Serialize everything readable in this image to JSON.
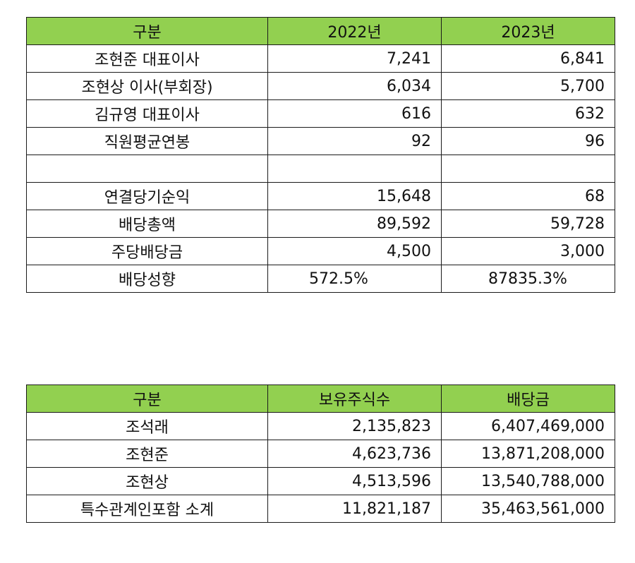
{
  "table1": {
    "headers": [
      "구분",
      "2022년",
      "2023년"
    ],
    "rows": [
      {
        "label": "조현준 대표이사",
        "y2022": "7,241",
        "y2023": "6,841"
      },
      {
        "label": "조현상 이사(부회장)",
        "y2022": "6,034",
        "y2023": "5,700"
      },
      {
        "label": "김규영 대표이사",
        "y2022": "616",
        "y2023": "632"
      },
      {
        "label": "직원평균연봉",
        "y2022": "92",
        "y2023": "96"
      },
      {
        "label": "",
        "y2022": "",
        "y2023": ""
      },
      {
        "label": "연결당기순익",
        "y2022": "15,648",
        "y2023": "68"
      },
      {
        "label": "배당총액",
        "y2022": "89,592",
        "y2023": "59,728"
      },
      {
        "label": "주당배당금",
        "y2022": "4,500",
        "y2023": "3,000"
      },
      {
        "label": "배당성향",
        "y2022": "572.5%",
        "y2023": "87835.3%"
      }
    ]
  },
  "table2": {
    "headers": [
      "구분",
      "보유주식수",
      "배당금"
    ],
    "rows": [
      {
        "label": "조석래",
        "shares": "2,135,823",
        "dividend": "6,407,469,000"
      },
      {
        "label": "조현준",
        "shares": "4,623,736",
        "dividend": "13,871,208,000"
      },
      {
        "label": "조현상",
        "shares": "4,513,596",
        "dividend": "13,540,788,000"
      },
      {
        "label": "특수관계인포함 소계",
        "shares": "11,821,187",
        "dividend": "35,463,561,000"
      }
    ]
  }
}
